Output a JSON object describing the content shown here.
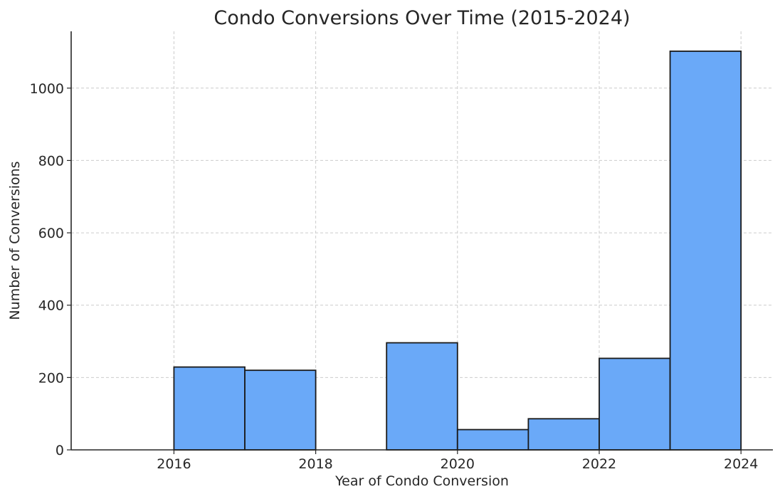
{
  "chart_data": {
    "type": "bar",
    "title": "Condo Conversions Over Time (2015-2024)",
    "xlabel": "Year of Condo Conversion",
    "ylabel": "Number of Conversions",
    "xlim": [
      2014.55,
      2024.45
    ],
    "ylim": [
      0,
      1157
    ],
    "xticks": [
      2016,
      2018,
      2020,
      2022,
      2024
    ],
    "yticks": [
      0,
      200,
      400,
      600,
      800,
      1000
    ],
    "grid": true,
    "bins": [
      {
        "start": 2015,
        "end": 2016,
        "value": 0
      },
      {
        "start": 2016,
        "end": 2017,
        "value": 229
      },
      {
        "start": 2017,
        "end": 2018,
        "value": 220
      },
      {
        "start": 2018,
        "end": 2019,
        "value": 0
      },
      {
        "start": 2019,
        "end": 2020,
        "value": 296
      },
      {
        "start": 2020,
        "end": 2021,
        "value": 56
      },
      {
        "start": 2021,
        "end": 2022,
        "value": 86
      },
      {
        "start": 2022,
        "end": 2023,
        "value": 253
      },
      {
        "start": 2023,
        "end": 2024,
        "value": 1102
      }
    ],
    "colors": {
      "bar": "#6aa9f8",
      "edge": "#1a1a1a"
    }
  }
}
